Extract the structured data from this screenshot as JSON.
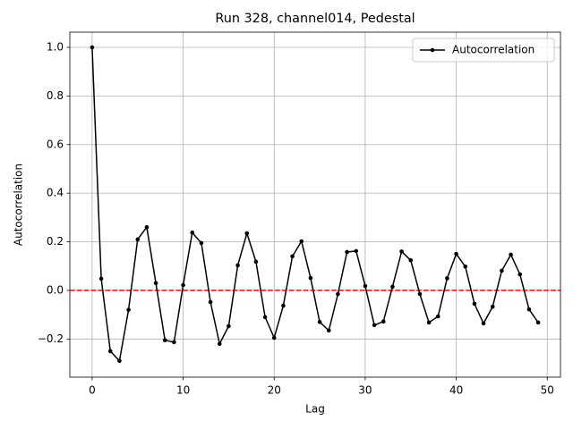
{
  "chart_data": {
    "type": "line",
    "title": "Run 328, channel014, Pedestal",
    "xlabel": "Lag",
    "ylabel": "Autocorrelation",
    "x": [
      0,
      1,
      2,
      3,
      4,
      5,
      6,
      7,
      8,
      9,
      10,
      11,
      12,
      13,
      14,
      15,
      16,
      17,
      18,
      19,
      20,
      21,
      22,
      23,
      24,
      25,
      26,
      27,
      28,
      29,
      30,
      31,
      32,
      33,
      34,
      35,
      36,
      37,
      38,
      39,
      40,
      41,
      42,
      43,
      44,
      45,
      46,
      47,
      48,
      49
    ],
    "series": [
      {
        "name": "Autocorrelation",
        "color": "#000000",
        "values": [
          1.0,
          0.048,
          -0.25,
          -0.29,
          -0.08,
          0.21,
          0.26,
          0.03,
          -0.205,
          -0.213,
          0.022,
          0.238,
          0.195,
          -0.048,
          -0.22,
          -0.147,
          0.103,
          0.235,
          0.118,
          -0.11,
          -0.195,
          -0.063,
          0.14,
          0.202,
          0.051,
          -0.13,
          -0.165,
          -0.015,
          0.158,
          0.162,
          0.018,
          -0.143,
          -0.128,
          0.015,
          0.16,
          0.124,
          -0.015,
          -0.132,
          -0.107,
          0.05,
          0.15,
          0.098,
          -0.055,
          -0.136,
          -0.067,
          0.081,
          0.147,
          0.066,
          -0.078,
          -0.132
        ]
      }
    ],
    "hline": {
      "value": 0,
      "color": "#ff0000"
    },
    "xlim": [
      -2.45,
      51.45
    ],
    "ylim": [
      -0.357,
      1.0625
    ],
    "xticks": [
      0,
      10,
      20,
      30,
      40,
      50
    ],
    "yticks": [
      {
        "value": -0.2,
        "label": "−0.2"
      },
      {
        "value": 0,
        "label": "0.0"
      },
      {
        "value": 0.2,
        "label": "0.2"
      },
      {
        "value": 0.4,
        "label": "0.4"
      },
      {
        "value": 0.6,
        "label": "0.6"
      },
      {
        "value": 0.8,
        "label": "0.8"
      },
      {
        "value": 1.0,
        "label": "1.0"
      }
    ],
    "grid": true,
    "legend": "upper right"
  }
}
